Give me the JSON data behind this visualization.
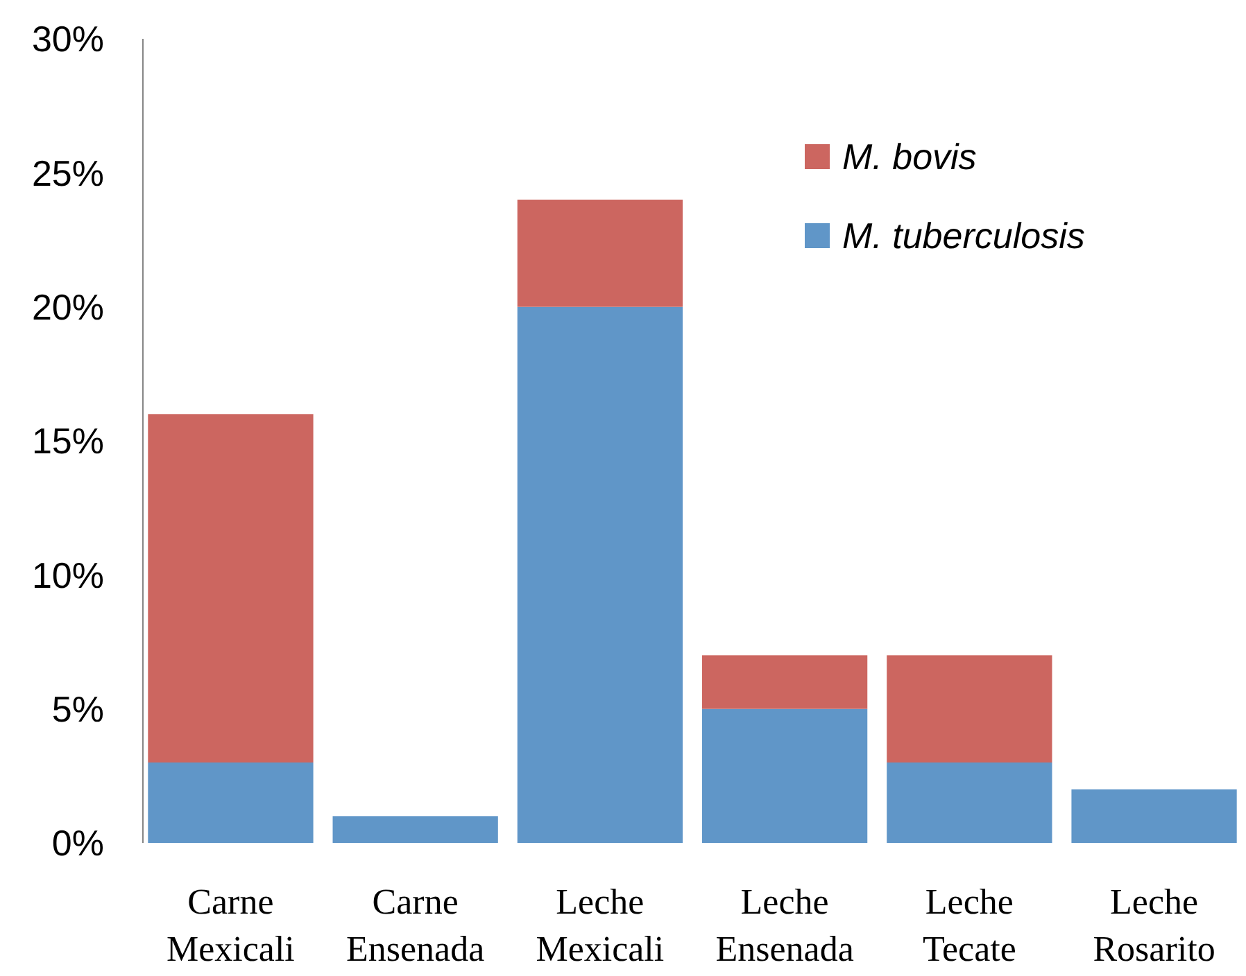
{
  "chart_data": {
    "type": "bar",
    "stacked": true,
    "categories": [
      "Carne Mexicali",
      "Carne Ensenada",
      "Leche Mexicali",
      "Leche Ensenada",
      "Leche Tecate",
      "Leche Rosarito"
    ],
    "series": [
      {
        "name": "M. tuberculosis",
        "color": "#6096c8",
        "values": [
          3,
          1,
          20,
          5,
          3,
          2
        ]
      },
      {
        "name": "M. bovis",
        "color": "#cc6660",
        "values": [
          13,
          null,
          4,
          2,
          4,
          null
        ]
      }
    ],
    "ylim": [
      0,
      30
    ],
    "yticks": [
      {
        "value": 0,
        "label": "0%"
      },
      {
        "value": 5,
        "label": "5%"
      },
      {
        "value": 10,
        "label": "10%"
      },
      {
        "value": 15,
        "label": "15%"
      },
      {
        "value": 20,
        "label": "20%"
      },
      {
        "value": 25,
        "label": "25%"
      },
      {
        "value": 30,
        "label": "30%"
      }
    ],
    "grid": false,
    "legend": "top right"
  }
}
